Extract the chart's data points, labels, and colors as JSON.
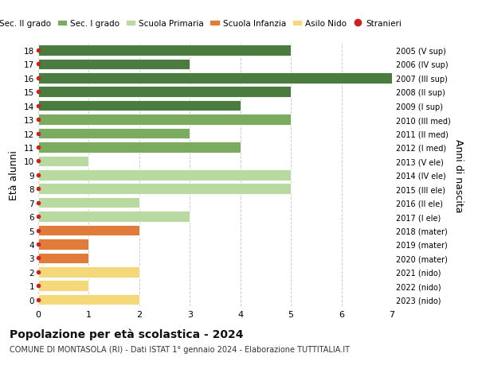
{
  "ages_bottom_to_top": [
    0,
    1,
    2,
    3,
    4,
    5,
    6,
    7,
    8,
    9,
    10,
    11,
    12,
    13,
    14,
    15,
    16,
    17,
    18
  ],
  "right_labels_bottom_to_top": [
    "2023 (nido)",
    "2022 (nido)",
    "2021 (nido)",
    "2020 (mater)",
    "2019 (mater)",
    "2018 (mater)",
    "2017 (I ele)",
    "2016 (II ele)",
    "2015 (III ele)",
    "2014 (IV ele)",
    "2013 (V ele)",
    "2012 (I med)",
    "2011 (II med)",
    "2010 (III med)",
    "2009 (I sup)",
    "2008 (II sup)",
    "2007 (III sup)",
    "2006 (IV sup)",
    "2005 (V sup)"
  ],
  "bars": [
    {
      "age": 0,
      "color": "#f5d87a",
      "value": 2
    },
    {
      "age": 1,
      "color": "#f5d87a",
      "value": 1
    },
    {
      "age": 2,
      "color": "#f5d87a",
      "value": 2
    },
    {
      "age": 3,
      "color": "#e07b39",
      "value": 1
    },
    {
      "age": 4,
      "color": "#e07b39",
      "value": 1
    },
    {
      "age": 5,
      "color": "#e07b39",
      "value": 2
    },
    {
      "age": 6,
      "color": "#b8d9a0",
      "value": 3
    },
    {
      "age": 7,
      "color": "#b8d9a0",
      "value": 2
    },
    {
      "age": 8,
      "color": "#b8d9a0",
      "value": 5
    },
    {
      "age": 9,
      "color": "#b8d9a0",
      "value": 5
    },
    {
      "age": 10,
      "color": "#b8d9a0",
      "value": 1
    },
    {
      "age": 11,
      "color": "#7aab5e",
      "value": 4
    },
    {
      "age": 12,
      "color": "#7aab5e",
      "value": 3
    },
    {
      "age": 13,
      "color": "#7aab5e",
      "value": 5
    },
    {
      "age": 14,
      "color": "#4a7c3f",
      "value": 4
    },
    {
      "age": 15,
      "color": "#4a7c3f",
      "value": 5
    },
    {
      "age": 16,
      "color": "#4a7c3f",
      "value": 7
    },
    {
      "age": 17,
      "color": "#4a7c3f",
      "value": 3
    },
    {
      "age": 18,
      "color": "#4a7c3f",
      "value": 5
    }
  ],
  "stranieri_ages": [
    0,
    1,
    2,
    3,
    4,
    5,
    6,
    7,
    8,
    9,
    10,
    11,
    12,
    13,
    14,
    15,
    16,
    17,
    18
  ],
  "legend": [
    {
      "label": "Sec. II grado",
      "color": "#4a7c3f"
    },
    {
      "label": "Sec. I grado",
      "color": "#7aab5e"
    },
    {
      "label": "Scuola Primaria",
      "color": "#b8d9a0"
    },
    {
      "label": "Scuola Infanzia",
      "color": "#e07b39"
    },
    {
      "label": "Asilo Nido",
      "color": "#f5d87a"
    },
    {
      "label": "Stranieri",
      "color": "#cc2222"
    }
  ],
  "ylabel_left": "Età alunni",
  "ylabel_right": "Anni di nascita",
  "xlim": [
    0,
    7
  ],
  "xticks": [
    0,
    1,
    2,
    3,
    4,
    5,
    6,
    7
  ],
  "ylim": [
    -0.5,
    18.5
  ],
  "title": "Popolazione per età scolastica - 2024",
  "subtitle": "COMUNE DI MONTASOLA (RI) - Dati ISTAT 1° gennaio 2024 - Elaborazione TUTTITALIA.IT",
  "bg_color": "#ffffff",
  "bar_height": 0.78,
  "dot_color": "#cc2222",
  "dot_size": 18,
  "grid_color": "#cccccc"
}
